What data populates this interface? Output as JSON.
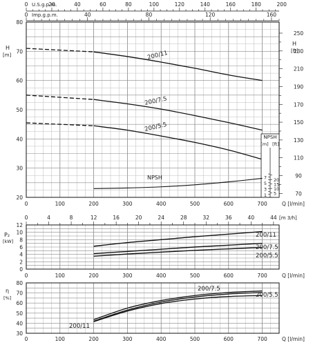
{
  "chart_data": [
    {
      "type": "line",
      "panel": "head",
      "xlabel": "Q [l/min]",
      "ylabel": "H [m]",
      "ylabel_right": "H [ft]",
      "xlim": [
        0,
        750
      ],
      "ylim": [
        20,
        80
      ],
      "ylim_right": [
        65.6,
        262.4
      ],
      "x_ticks": [
        0,
        100,
        200,
        300,
        400,
        500,
        600,
        700
      ],
      "y_ticks": [
        20,
        30,
        40,
        50,
        60,
        70,
        80
      ],
      "y_ticks_right": [
        70,
        90,
        110,
        130,
        150,
        170,
        190,
        210,
        230,
        250
      ],
      "top_axis_usgpm": {
        "label": "U.S.g.p.m.",
        "ticks": [
          0,
          20,
          40,
          60,
          80,
          100,
          120,
          140,
          160,
          180,
          200
        ],
        "max": 198
      },
      "top_axis_impgpm": {
        "label": "Imp.g.p.m.",
        "ticks": [
          0,
          40,
          80,
          120,
          160
        ],
        "max": 165
      },
      "grid": true,
      "series": [
        {
          "name": "200/11",
          "x": [
            0,
            200,
            300,
            400,
            500,
            600,
            700
          ],
          "y": [
            71,
            69.8,
            68.2,
            66.3,
            64.2,
            61.9,
            60
          ],
          "dashed_until": 200
        },
        {
          "name": "200/7.5",
          "x": [
            0,
            200,
            300,
            400,
            500,
            600,
            700
          ],
          "y": [
            55,
            53.5,
            52,
            50.2,
            48,
            45.6,
            43
          ],
          "dashed_until": 200
        },
        {
          "name": "200/5.5",
          "x": [
            0,
            200,
            300,
            400,
            500,
            600,
            700
          ],
          "y": [
            45.5,
            44.5,
            43,
            41,
            38.8,
            36.2,
            33
          ],
          "dashed_until": 200
        }
      ]
    },
    {
      "type": "line",
      "panel": "npsh",
      "title": "NPSH",
      "y_left_label": "[m]",
      "y_right_label": "[ft]",
      "y_left_ticks": [
        1,
        3,
        5,
        7
      ],
      "y_right_ticks": [
        5,
        10,
        15,
        20
      ],
      "series": [
        {
          "name": "NPSH",
          "x": [
            200,
            300,
            400,
            500,
            600,
            700
          ],
          "y": [
            23,
            23.2,
            23.6,
            24.3,
            25.3,
            26.5
          ]
        }
      ]
    },
    {
      "type": "line",
      "panel": "power",
      "xlabel": "Q [l/min]",
      "ylabel": "P2 [kW]",
      "xlim": [
        0,
        750
      ],
      "ylim": [
        0,
        12
      ],
      "y_ticks": [
        0,
        2,
        4,
        6,
        8,
        10,
        12
      ],
      "m3h_axis": {
        "label": "[m 3/h]",
        "ticks": [
          0,
          4,
          8,
          12,
          16,
          20,
          24,
          28,
          32,
          36,
          40,
          44
        ]
      },
      "grid": true,
      "series": [
        {
          "name": "200/11",
          "x": [
            200,
            300,
            400,
            500,
            600,
            700
          ],
          "y": [
            6.2,
            7.2,
            8,
            8.8,
            9.5,
            10.2
          ]
        },
        {
          "name": "200/7.5",
          "x": [
            200,
            300,
            400,
            500,
            600,
            700
          ],
          "y": [
            4.2,
            4.8,
            5.4,
            6,
            6.5,
            7
          ]
        },
        {
          "name": "200/5.5",
          "x": [
            200,
            300,
            400,
            500,
            600,
            700
          ],
          "y": [
            3.5,
            4.1,
            4.6,
            5.1,
            5.5,
            5.9
          ]
        }
      ]
    },
    {
      "type": "line",
      "panel": "efficiency",
      "xlabel": "Q [l/min]",
      "ylabel": "η [%]",
      "xlim": [
        0,
        750
      ],
      "ylim": [
        30,
        80
      ],
      "y_ticks": [
        30,
        40,
        50,
        60,
        70,
        80
      ],
      "grid": true,
      "series": [
        {
          "name": "200/11",
          "x": [
            200,
            300,
            400,
            500,
            600,
            700
          ],
          "y": [
            42,
            53,
            61,
            66,
            69,
            70.5
          ]
        },
        {
          "name": "200/7.5",
          "x": [
            200,
            300,
            400,
            500,
            600,
            700
          ],
          "y": [
            43.5,
            55,
            62.5,
            67.5,
            70.5,
            72
          ]
        },
        {
          "name": "200/5.5",
          "x": [
            200,
            300,
            400,
            500,
            600,
            700
          ],
          "y": [
            41.5,
            52,
            59.5,
            64,
            66.5,
            67.5
          ]
        }
      ]
    }
  ]
}
